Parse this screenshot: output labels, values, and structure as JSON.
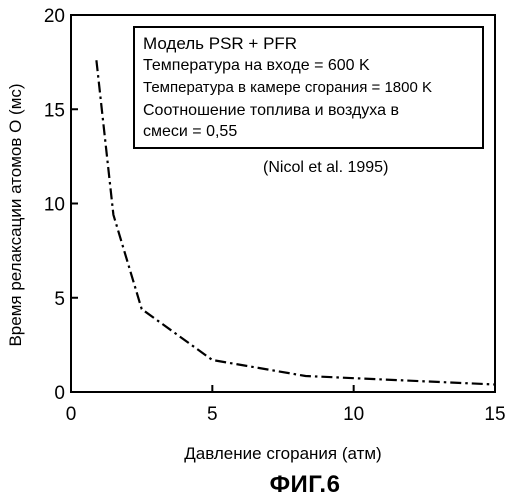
{
  "chart_data": {
    "type": "line",
    "xlabel": "Давление сгорания (атм)",
    "ylabel": "Время релаксации атомов O (мс)",
    "xlim": [
      0,
      15
    ],
    "ylim": [
      0,
      20
    ],
    "x_ticks": [
      0,
      5,
      10,
      15
    ],
    "y_ticks": [
      0,
      5,
      10,
      15,
      20
    ],
    "grid": false,
    "series": [
      {
        "line_style": "dash-dot",
        "x": [
          0.9,
          1.5,
          2.5,
          5.0,
          8.3,
          15.0
        ],
        "y": [
          17.6,
          9.4,
          4.4,
          1.7,
          0.85,
          0.4
        ]
      }
    ],
    "annotation_box": {
      "lines": [
        "Модель PSR + PFR",
        "Температура на входе = 600 K",
        "Температура в камере сгорания = 1800 K",
        " Соотношение топлива и воздуха в",
        " смеси = 0,55"
      ]
    },
    "reference": "(Nicol et al. 1995)"
  },
  "figure_caption": "ФИГ.6",
  "colors": {
    "line": "#000000",
    "background": "#ffffff"
  }
}
